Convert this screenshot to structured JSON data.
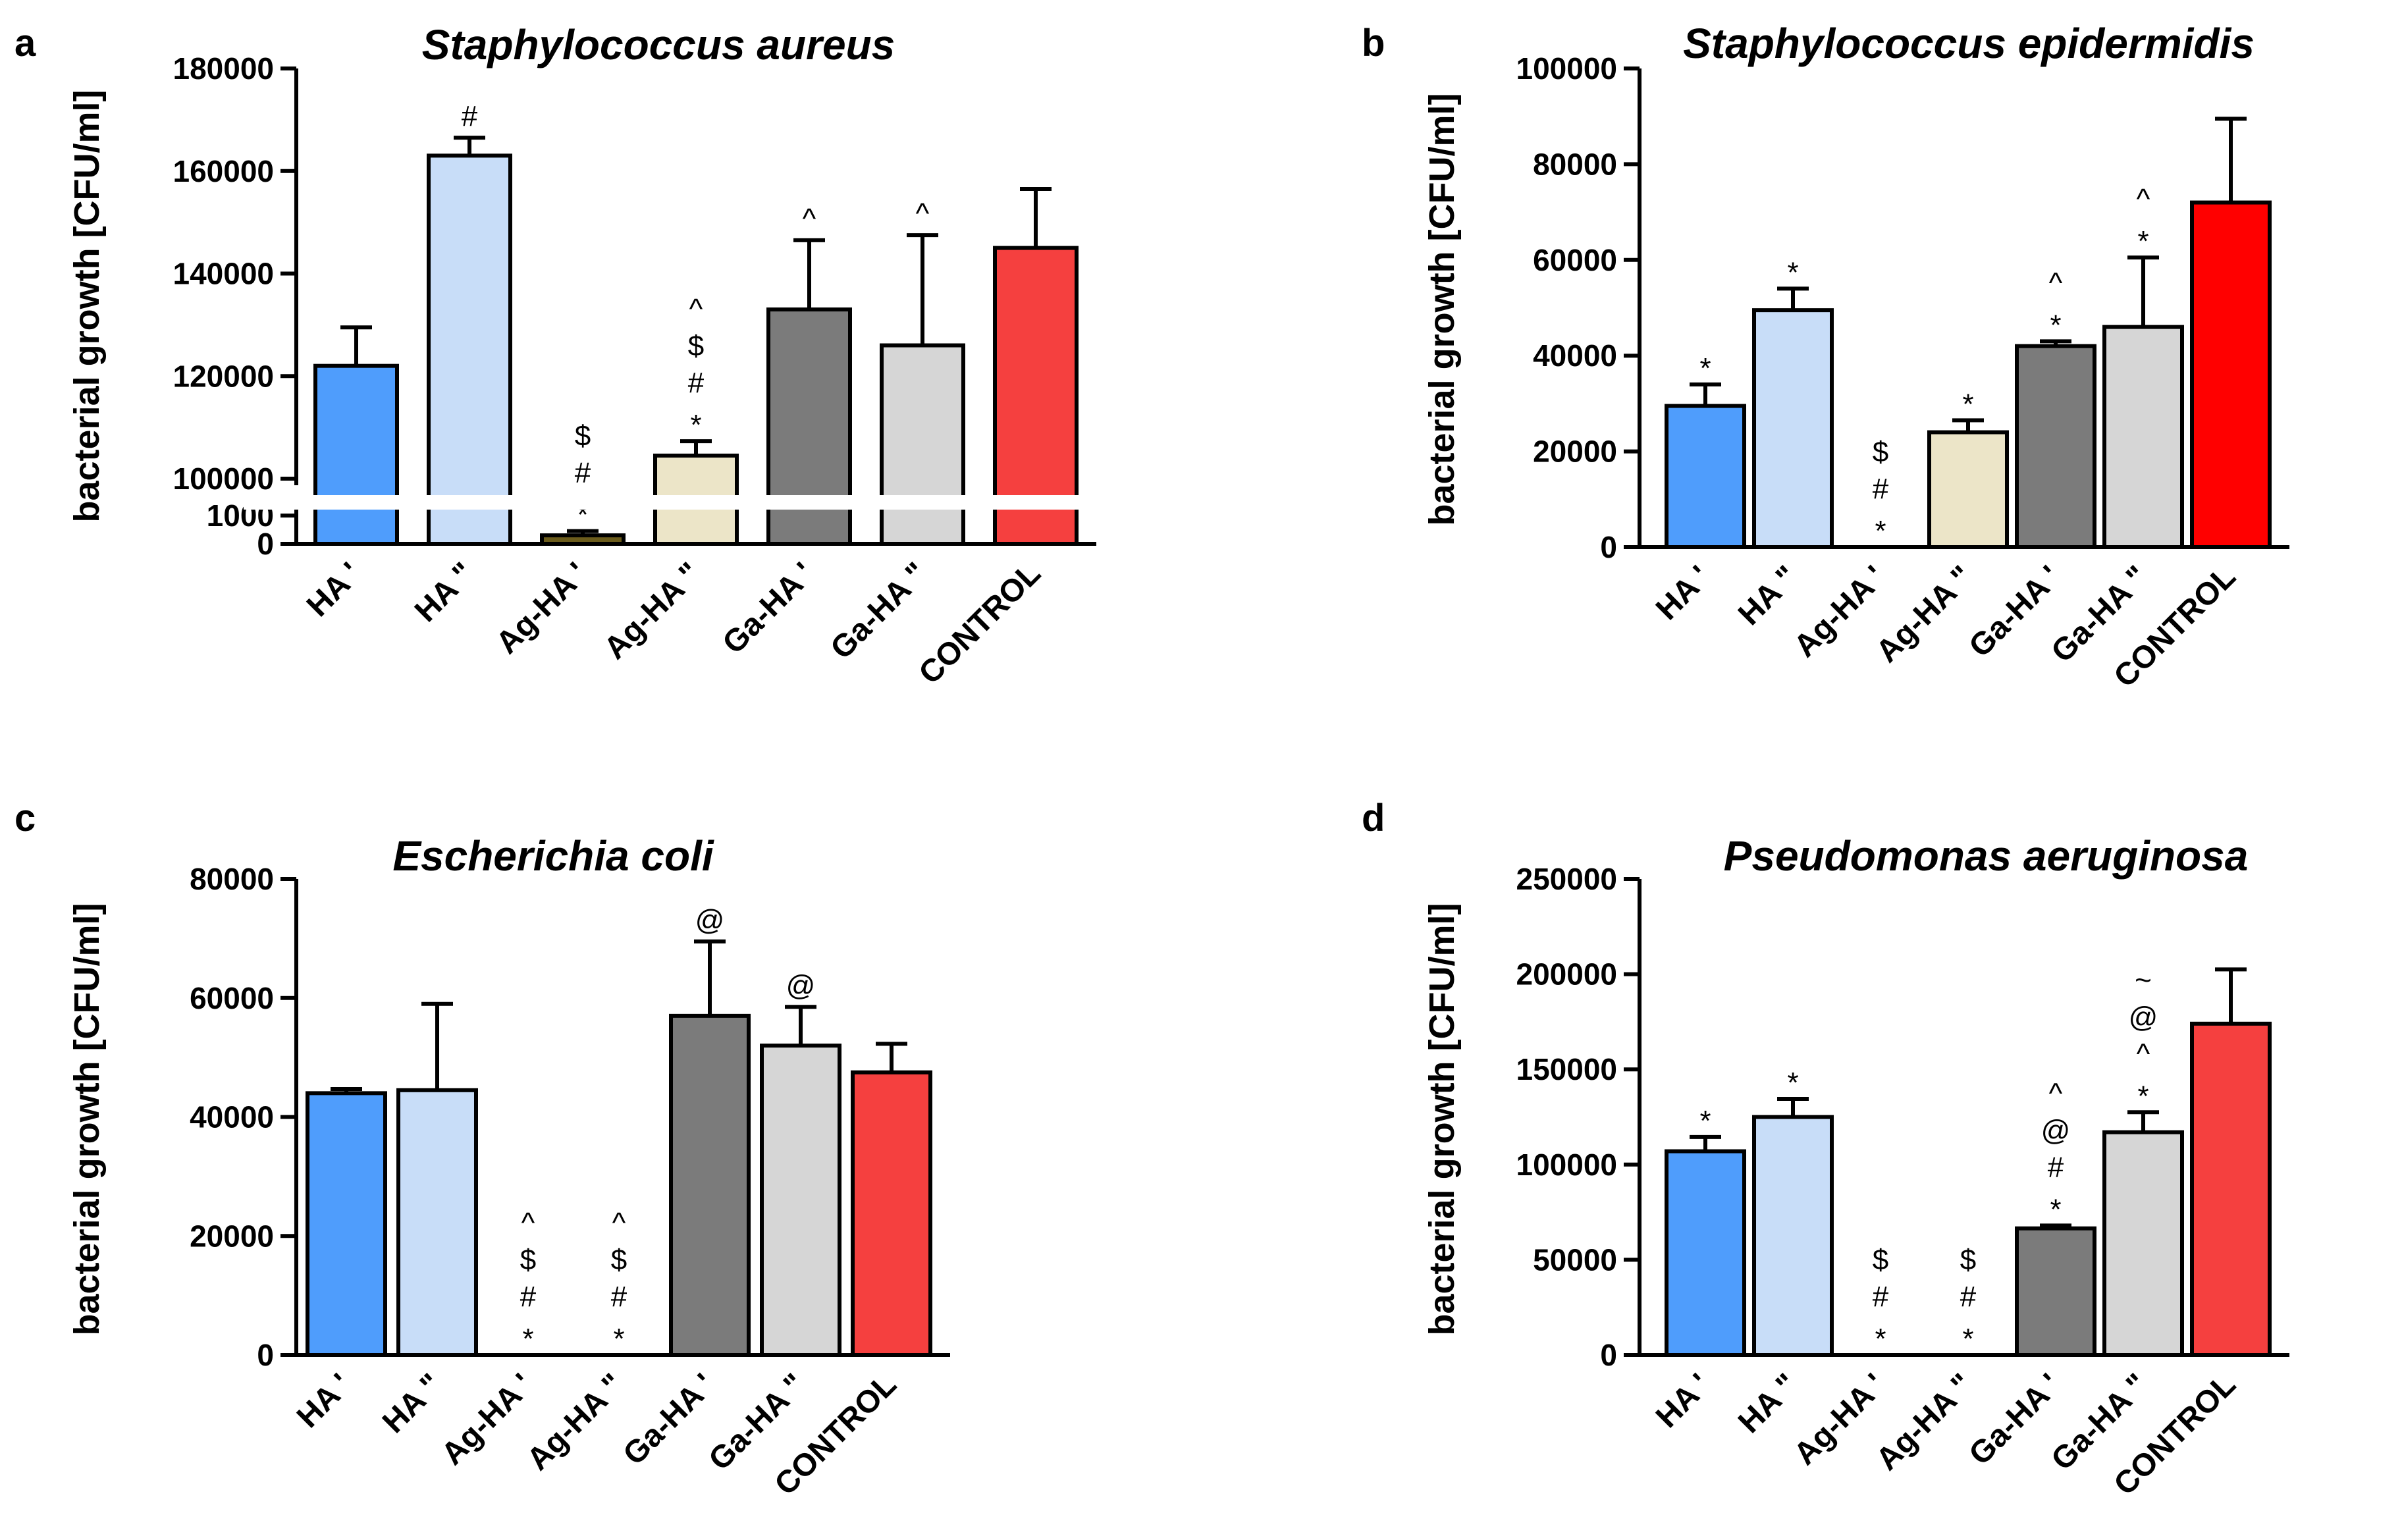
{
  "chart_data": [
    {
      "panel": "a",
      "type": "bar",
      "title": "Staphylococcus aureus",
      "ylabel": "bacterial growth [CFU/ml]",
      "xlabel": "",
      "categories": [
        "HA '",
        "HA \"",
        "Ag-HA '",
        "Ag-HA \"",
        "Ga-HA '",
        "Ga-HA \"",
        "CONTROL"
      ],
      "values": [
        122000,
        163000,
        300,
        104500,
        133000,
        126000,
        145000
      ],
      "errors": [
        7500,
        3500,
        150,
        2800,
        13500,
        21500,
        11500
      ],
      "colors": [
        "#4f9dfc",
        "#c8ddf8",
        "#6b5c1c",
        "#ece5c8",
        "#7b7b7b",
        "#d6d6d6",
        "#f5403f"
      ],
      "annotations": [
        [],
        [
          "#"
        ],
        [
          "*",
          "#",
          "$"
        ],
        [
          "*",
          "#",
          "$",
          "^"
        ],
        [
          "^"
        ],
        [
          "^"
        ],
        []
      ],
      "axis_break": true,
      "ylim_lower": [
        0,
        1000
      ],
      "ylim_upper": [
        100000,
        180000
      ],
      "ticks_lower": [
        0,
        1000
      ],
      "ticks_upper": [
        100000,
        120000,
        140000,
        160000,
        180000
      ],
      "tick_labels_lower": [
        "0",
        "1000"
      ],
      "tick_labels_upper": [
        "100000",
        "120000",
        "140000",
        "160000",
        "180000"
      ]
    },
    {
      "panel": "b",
      "type": "bar",
      "title": "Staphylococcus epidermidis",
      "ylabel": "bacterial growth [CFU/ml]",
      "xlabel": "",
      "categories": [
        "HA '",
        "HA \"",
        "Ag-HA '",
        "Ag-HA \"",
        "Ga-HA '",
        "Ga-HA \"",
        "CONTROL"
      ],
      "values": [
        29500,
        49500,
        0,
        24000,
        42000,
        46000,
        72000
      ],
      "errors": [
        4500,
        4500,
        0,
        2500,
        1000,
        14500,
        17500
      ],
      "colors": [
        "#4f9dfc",
        "#c8ddf8",
        "#6b5c1c",
        "#ece5c8",
        "#7b7b7b",
        "#d6d6d6",
        "#ff0000"
      ],
      "annotations": [
        [
          "*"
        ],
        [
          "*"
        ],
        [
          "*",
          "#",
          "$"
        ],
        [
          "*"
        ],
        [
          "*",
          "^"
        ],
        [
          "*",
          "^"
        ],
        []
      ],
      "axis_break": false,
      "ylim": [
        0,
        100000
      ],
      "ticks": [
        0,
        20000,
        40000,
        60000,
        80000,
        100000
      ],
      "tick_labels": [
        "0",
        "20000",
        "40000",
        "60000",
        "80000",
        "100000"
      ]
    },
    {
      "panel": "c",
      "type": "bar",
      "title": "Escherichia coli",
      "ylabel": "bacterial growth [CFU/ml]",
      "xlabel": "",
      "categories": [
        "HA '",
        "HA \"",
        "Ag-HA '",
        "Ag-HA \"",
        "Ga-HA '",
        "Ga-HA \"",
        "CONTROL"
      ],
      "values": [
        44000,
        44500,
        0,
        0,
        57000,
        52000,
        47500
      ],
      "errors": [
        700,
        14500,
        0,
        0,
        12500,
        6500,
        4800
      ],
      "colors": [
        "#4f9dfc",
        "#c8ddf8",
        "#6b5c1c",
        "#ece5c8",
        "#7b7b7b",
        "#d6d6d6",
        "#f5403f"
      ],
      "annotations": [
        [],
        [],
        [
          "*",
          "#",
          "$",
          "^"
        ],
        [
          "*",
          "#",
          "$",
          "^"
        ],
        [
          "@"
        ],
        [
          "@"
        ],
        []
      ],
      "axis_break": false,
      "ylim": [
        0,
        80000
      ],
      "ticks": [
        0,
        20000,
        40000,
        60000,
        80000
      ],
      "tick_labels": [
        "0",
        "20000",
        "40000",
        "60000",
        "80000"
      ]
    },
    {
      "panel": "d",
      "type": "bar",
      "title": "Pseudomonas aeruginosa",
      "ylabel": "bacterial growth [CFU/ml]",
      "xlabel": "",
      "categories": [
        "HA '",
        "HA \"",
        "Ag-HA '",
        "Ag-HA \"",
        "Ga-HA '",
        "Ga-HA \"",
        "CONTROL"
      ],
      "values": [
        107000,
        125000,
        0,
        0,
        66500,
        117000,
        174000
      ],
      "errors": [
        7500,
        9500,
        0,
        0,
        1500,
        10500,
        28500
      ],
      "colors": [
        "#4f9dfc",
        "#c8ddf8",
        "#6b5c1c",
        "#ece5c8",
        "#7b7b7b",
        "#d6d6d6",
        "#f5403f"
      ],
      "annotations": [
        [
          "*"
        ],
        [
          "*"
        ],
        [
          "*",
          "#",
          "$"
        ],
        [
          "*",
          "#",
          "$"
        ],
        [
          "*",
          "#",
          "@",
          "^"
        ],
        [
          "*",
          "^",
          "@",
          "~"
        ],
        []
      ],
      "axis_break": false,
      "ylim": [
        0,
        250000
      ],
      "ticks": [
        0,
        50000,
        100000,
        150000,
        200000,
        250000
      ],
      "tick_labels": [
        "0",
        "50000",
        "100000",
        "150000",
        "200000",
        "250000"
      ]
    }
  ]
}
